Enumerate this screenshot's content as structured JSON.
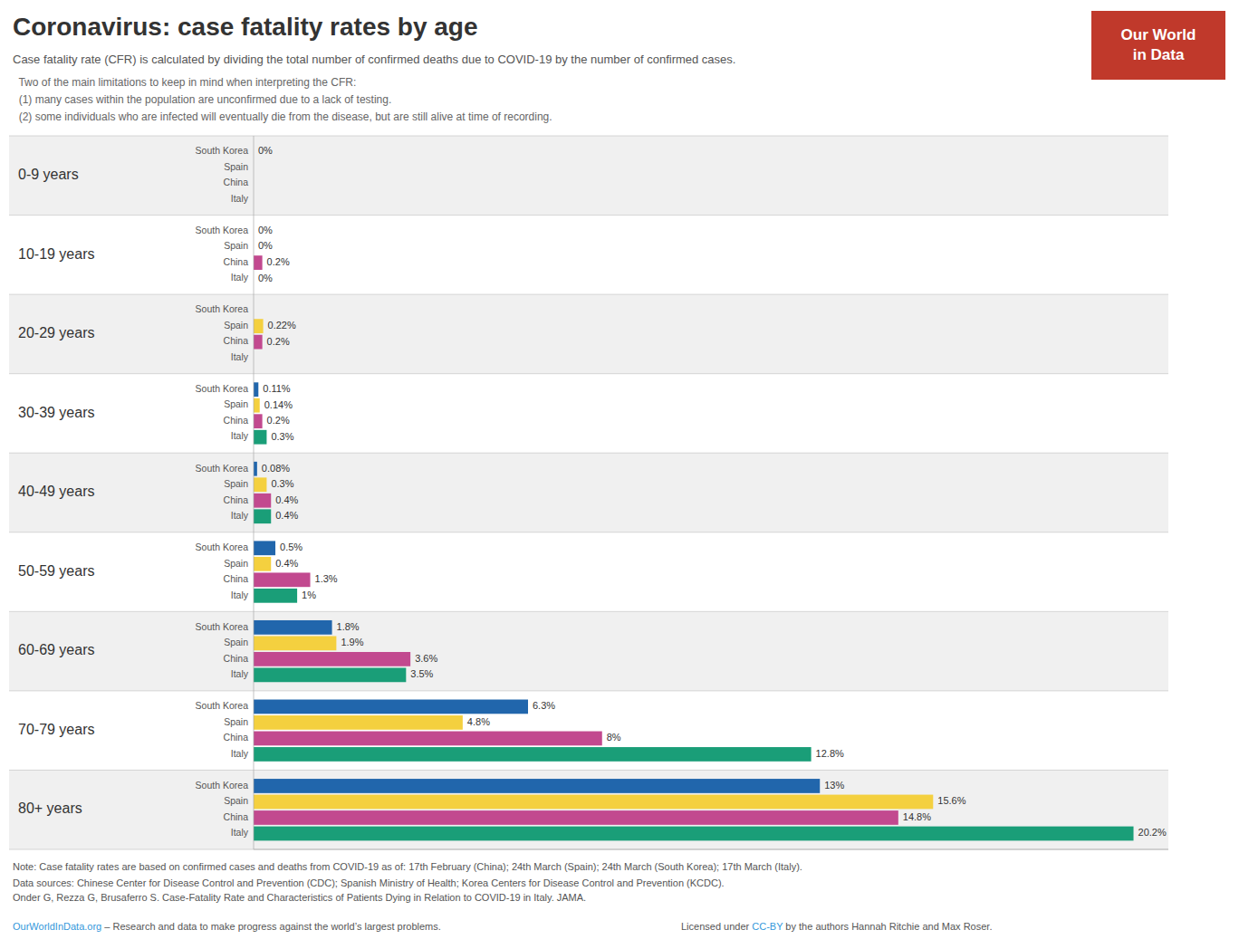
{
  "chart_data": {
    "type": "bar",
    "orientation": "horizontal",
    "title": "Coronavirus: case fatality rates by age",
    "subtitle": "Case fatality rate (CFR) is calculated by dividing the total number of confirmed deaths due to COVID-19 by the number of confirmed cases.",
    "notes": [
      "  Two of the main limitations to keep in mind when interpreting the CFR:",
      "  (1) many cases within the population are unconfirmed due to a lack of testing.",
      "  (2) some individuals who are infected will eventually die from the disease, but are still alive at time of recording."
    ],
    "footer": [
      "Note: Case fatality rates are based on confirmed cases and deaths from COVID-19 as of: 17th February (China); 24th March (Spain); 24th March (South Korea); 17th March (Italy).",
      "Data sources: Chinese Center for Disease Control and Prevention (CDC); Spanish Ministry of Health; Korea Centers for Disease Control and Prevention (KCDC).\nOnder G, Rezza G, Brusaferro S. Case-Fatality Rate and Characteristics of Patients Dying in Relation to COVID-19 in Italy. JAMA."
    ],
    "credits": [
      "OurWorldInData.org",
      " – Research and data to make progress against the world’s largest problems.",
      "Licensed under ",
      "CC-BY",
      " by the authors Hannah Ritchie and Max Roser."
    ],
    "badge": {
      "lines": [
        "Our World",
        "in Data"
      ],
      "color": "#c0392b"
    },
    "categories": [
      "0-9 years",
      "10-19 years",
      "20-29 years",
      "30-39 years",
      "40-49 years",
      "50-59 years",
      "60-69 years",
      "70-79 years",
      "80+ years"
    ],
    "series": [
      {
        "name": "South Korea",
        "color": "#2166ac",
        "values": [
          0.0,
          0.0,
          0.0,
          0.11,
          0.08,
          0.5,
          1.8,
          6.3,
          13.0
        ],
        "value_labels": [
          "0%",
          "0%",
          null,
          "0.11%",
          "0.08%",
          "0.5%",
          "1.8%",
          "6.3%",
          "13%"
        ]
      },
      {
        "name": "Spain",
        "color": "#f4d03f",
        "values": [
          0.0,
          0.0,
          0.22,
          0.14,
          0.3,
          0.4,
          1.9,
          4.8,
          15.6
        ],
        "value_labels": [
          null,
          "0%",
          "0.22%",
          "0.14%",
          "0.3%",
          "0.4%",
          "1.9%",
          "4.8%",
          "15.6%"
        ]
      },
      {
        "name": "China",
        "color": "#c2498f",
        "values": [
          0.0,
          0.2,
          0.2,
          0.2,
          0.4,
          1.3,
          3.6,
          8.0,
          14.8
        ],
        "value_labels": [
          null,
          "0.2%",
          "0.2%",
          "0.2%",
          "0.4%",
          "1.3%",
          "3.6%",
          "8%",
          "14.8%"
        ]
      },
      {
        "name": "Italy",
        "color": "#1a9e78",
        "values": [
          0.0,
          0.0,
          0.0,
          0.3,
          0.4,
          1.0,
          3.5,
          12.8,
          20.2
        ],
        "value_labels": [
          null,
          "0%",
          null,
          "0.3%",
          "0.4%",
          "1%",
          "3.5%",
          "12.8%",
          "20.2%"
        ]
      }
    ],
    "xlim": [
      0,
      21
    ],
    "tick_labels": "y",
    "grid": false,
    "data_labels": true
  }
}
